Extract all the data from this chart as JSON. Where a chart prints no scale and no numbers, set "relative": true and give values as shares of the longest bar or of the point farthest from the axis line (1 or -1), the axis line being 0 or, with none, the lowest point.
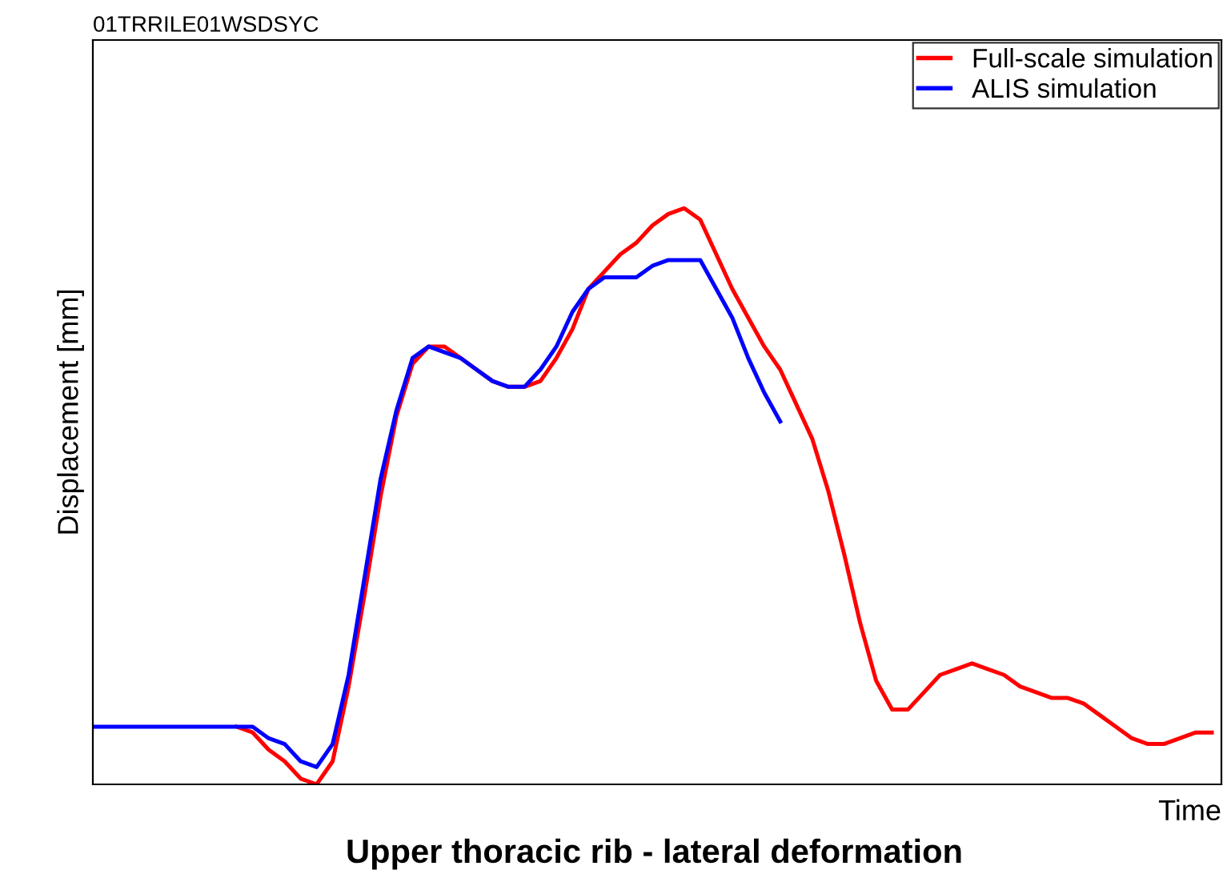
{
  "chart_data": {
    "type": "line",
    "title": "Upper thoracic rib - lateral deformation",
    "subtitle": "01TRRILE01WSDSYC",
    "xlabel": "Time",
    "ylabel": "Displacement [mm]",
    "relative": true,
    "grid": false,
    "legend": "top right",
    "marker": "none",
    "line_style": "solid",
    "categories": [
      null,
      null,
      null,
      null,
      null,
      null,
      null,
      null,
      null,
      null,
      null,
      null,
      null,
      null,
      null,
      null,
      null,
      null,
      null,
      null,
      null,
      null,
      null,
      null,
      null,
      null,
      null,
      null,
      null,
      null,
      null,
      null,
      null,
      null,
      null,
      null,
      null,
      null,
      null,
      null,
      null,
      null,
      null,
      null,
      null,
      null,
      null,
      null,
      null,
      null,
      null,
      null,
      null,
      null,
      null,
      null,
      null,
      null,
      null,
      null,
      null,
      null,
      null,
      null,
      null,
      null,
      null,
      null,
      null,
      null,
      null
    ],
    "series": [
      {
        "name": "Full-scale simulation",
        "color": "#ff0000",
        "values": [
          null,
          null,
          null,
          null,
          null,
          null,
          null,
          null,
          null,
          0.1,
          0.09,
          0.06,
          0.04,
          0.01,
          0.0,
          0.04,
          0.17,
          0.33,
          0.5,
          0.64,
          0.73,
          0.76,
          0.76,
          0.74,
          0.72,
          0.7,
          0.69,
          0.69,
          0.7,
          0.74,
          0.79,
          0.86,
          0.89,
          0.92,
          0.94,
          0.97,
          0.99,
          1.0,
          0.98,
          0.92,
          0.86,
          0.81,
          0.76,
          0.72,
          0.66,
          0.6,
          0.51,
          0.4,
          0.28,
          0.18,
          0.13,
          0.13,
          0.16,
          0.19,
          0.2,
          0.21,
          0.2,
          0.19,
          0.17,
          0.16,
          0.15,
          0.15,
          0.14,
          0.12,
          0.1,
          0.08,
          0.07,
          0.07,
          0.08,
          0.09,
          0.09
        ]
      },
      {
        "name": "ALIS simulation",
        "color": "#0000ff",
        "values": [
          0.1,
          0.1,
          0.1,
          0.1,
          0.1,
          0.1,
          0.1,
          0.1,
          0.1,
          0.1,
          0.1,
          0.08,
          0.07,
          0.04,
          0.03,
          0.07,
          0.19,
          0.36,
          0.53,
          0.65,
          0.74,
          0.76,
          0.75,
          0.74,
          0.72,
          0.7,
          0.69,
          0.69,
          0.72,
          0.76,
          0.82,
          0.86,
          0.88,
          0.88,
          0.88,
          0.9,
          0.91,
          0.91,
          0.91,
          0.86,
          0.81,
          0.74,
          0.68,
          0.63,
          null,
          null,
          null,
          null,
          null,
          null,
          null,
          null,
          null,
          null,
          null,
          null,
          null,
          null,
          null,
          null,
          null,
          null,
          null,
          null,
          null,
          null,
          null,
          null,
          null,
          null,
          null
        ]
      }
    ]
  }
}
